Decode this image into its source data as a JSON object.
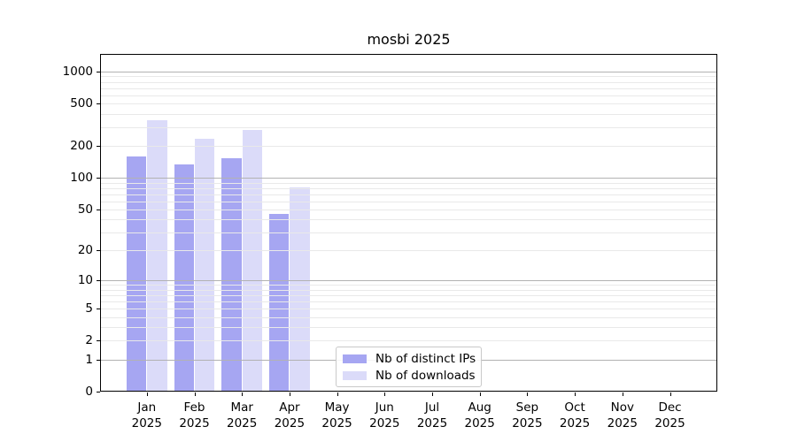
{
  "chart_data": {
    "type": "bar",
    "title": "mosbi 2025",
    "categories": [
      {
        "month": "Jan",
        "year": "2025"
      },
      {
        "month": "Feb",
        "year": "2025"
      },
      {
        "month": "Mar",
        "year": "2025"
      },
      {
        "month": "Apr",
        "year": "2025"
      },
      {
        "month": "May",
        "year": "2025"
      },
      {
        "month": "Jun",
        "year": "2025"
      },
      {
        "month": "Jul",
        "year": "2025"
      },
      {
        "month": "Aug",
        "year": "2025"
      },
      {
        "month": "Sep",
        "year": "2025"
      },
      {
        "month": "Oct",
        "year": "2025"
      },
      {
        "month": "Nov",
        "year": "2025"
      },
      {
        "month": "Dec",
        "year": "2025"
      }
    ],
    "series": [
      {
        "name": "Nb of distinct IPs",
        "color": "#a6a6f2",
        "values": [
          160,
          133,
          152,
          45,
          0,
          0,
          0,
          0,
          0,
          0,
          0,
          0
        ]
      },
      {
        "name": "Nb of downloads",
        "color": "#dbdbf9",
        "values": [
          350,
          235,
          285,
          81,
          0,
          0,
          0,
          0,
          0,
          0,
          0,
          0
        ]
      }
    ],
    "yscale": "log1p",
    "ylim": [
      0,
      1460
    ],
    "yticks": [
      0,
      1,
      2,
      5,
      10,
      20,
      50,
      100,
      200,
      500,
      1000
    ],
    "grid": {
      "major_values": [
        1,
        10,
        100,
        1000
      ],
      "minor_values": [
        2,
        3,
        4,
        5,
        6,
        7,
        8,
        9,
        20,
        30,
        40,
        50,
        60,
        70,
        80,
        90,
        200,
        300,
        400,
        500,
        600,
        700,
        800,
        900
      ],
      "major_color": "#b2b2b2",
      "minor_color": "#e9e9e9"
    },
    "legend_position": "lower center",
    "xlabel": "",
    "ylabel": ""
  },
  "colors": {
    "spine": "#000000",
    "text": "#000000",
    "legend_border": "#c9c9c9",
    "background": "#ffffff"
  }
}
